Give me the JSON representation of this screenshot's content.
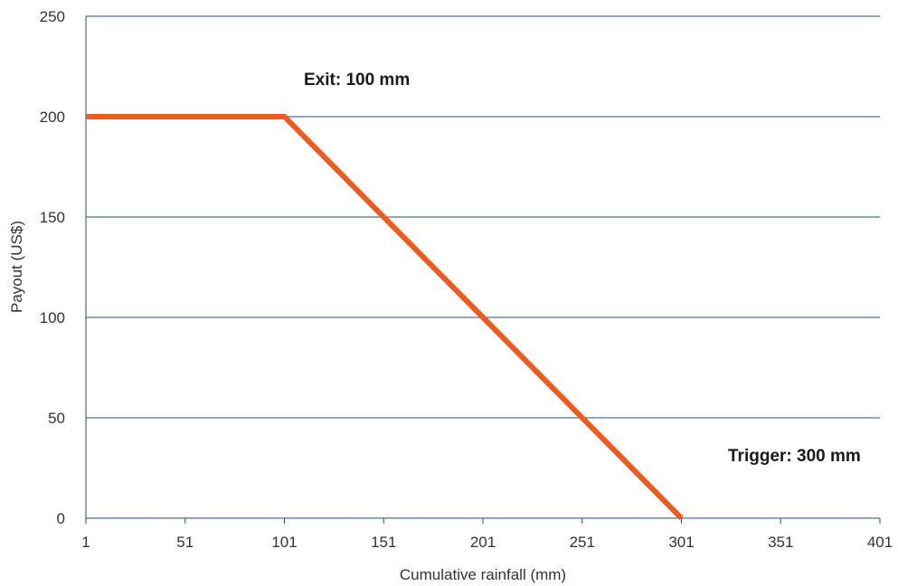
{
  "chart_data": {
    "type": "line",
    "title": "",
    "xlabel": "Cumulative rainfall (mm)",
    "ylabel": "Payout (US$)",
    "xlim": [
      1,
      401
    ],
    "ylim": [
      0,
      250
    ],
    "x_ticks": [
      "1",
      "51",
      "101",
      "151",
      "201",
      "251",
      "301",
      "351",
      "401"
    ],
    "y_ticks": [
      "0",
      "50",
      "100",
      "150",
      "200",
      "250"
    ],
    "grid": "horizontal",
    "series": [
      {
        "x": [
          1,
          101,
          301
        ],
        "y": [
          200,
          200,
          0
        ],
        "color": "#ef5b1f"
      }
    ],
    "annotations": [
      {
        "text": "Exit: 100 mm"
      },
      {
        "text": "Trigger: 300 mm"
      }
    ]
  },
  "colors": {
    "axis": "#1f4e79",
    "grid": "#1f4e79",
    "line": "#ef5b1f"
  }
}
